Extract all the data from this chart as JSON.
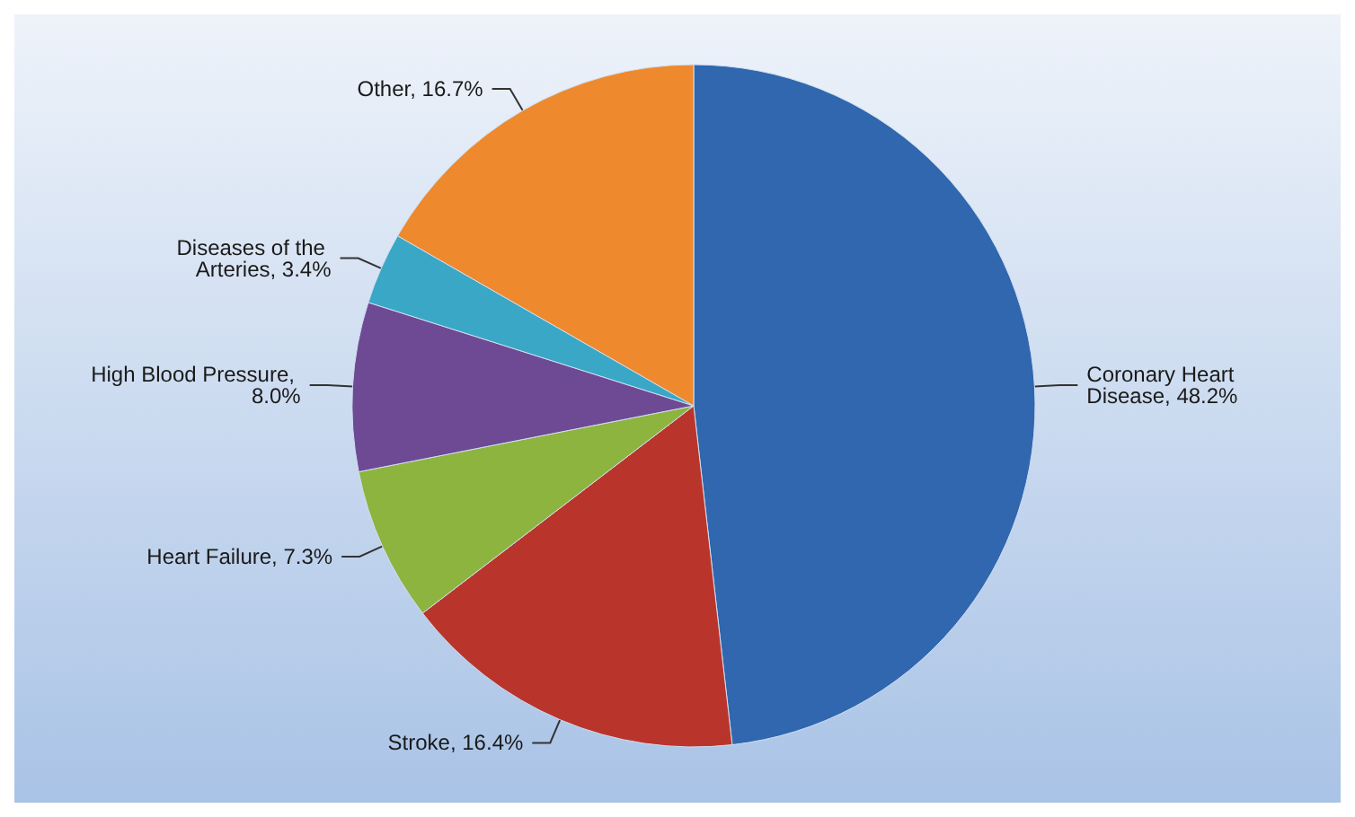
{
  "chart_data": {
    "type": "pie",
    "categories": [
      "Coronary Heart Disease",
      "Stroke",
      "Heart Failure",
      "High Blood Pressure",
      "Diseases of the Arteries",
      "Other"
    ],
    "values": [
      48.2,
      16.4,
      7.3,
      8.0,
      3.4,
      16.7
    ],
    "value_labels": [
      ", 48.2%",
      ", 16.4%",
      ", 7.3%",
      ", 8.0%",
      ", 3.4%",
      ", 16.7%"
    ],
    "colors": [
      "#3067ae",
      "#b9352c",
      "#8db43f",
      "#6e4a95",
      "#3aa7c6",
      "#ef892d"
    ],
    "legend": false
  }
}
